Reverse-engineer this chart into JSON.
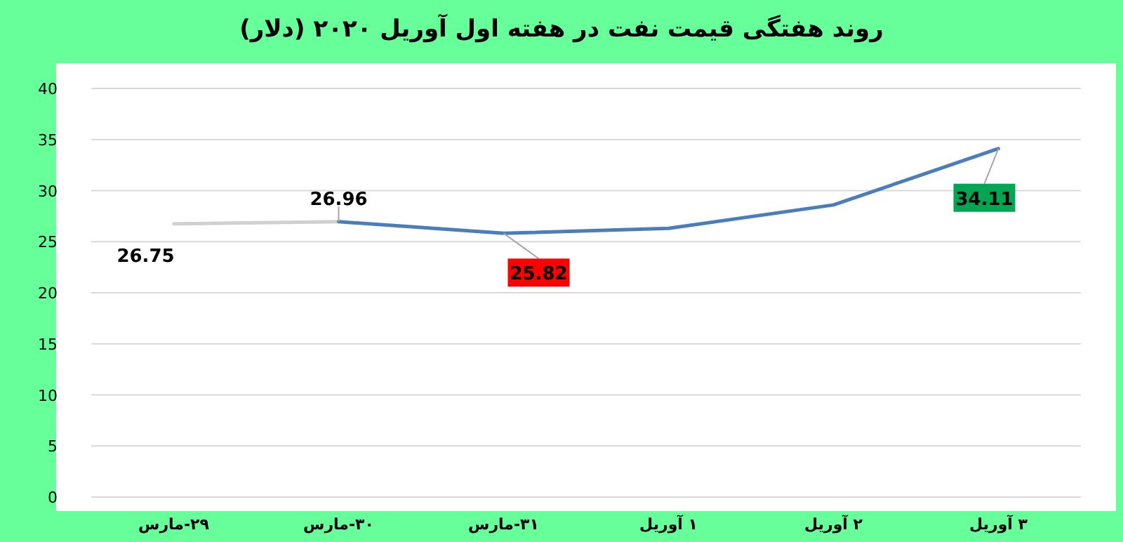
{
  "chart_data": {
    "type": "line",
    "title": "روند هفتگی قیمت نفت در هفته اول آوریل ۲۰۲۰ (دلار)",
    "categories": [
      "۲۹-مارس",
      "۳۰-مارس",
      "۳۱-مارس",
      "۱ آوریل",
      "۲ آوریل",
      "۳ آوریل"
    ],
    "series": [
      {
        "color": "#d0d0d0",
        "values": [
          26.75,
          26.96,
          null,
          null,
          null,
          null
        ],
        "value_labels": [
          "26.75",
          null,
          null,
          null,
          null,
          null
        ]
      },
      {
        "color": "#4a7ebb",
        "values": [
          null,
          26.96,
          25.82,
          26.3,
          28.6,
          34.11
        ],
        "value_labels": [
          null,
          "26.96",
          "25.82",
          null,
          null,
          "34.11"
        ]
      }
    ],
    "ylim": [
      0,
      40
    ],
    "yticks": [
      0,
      5,
      10,
      15,
      20,
      25,
      30,
      35,
      40
    ],
    "grid": "y",
    "marker": "none",
    "line_style": "solid"
  }
}
